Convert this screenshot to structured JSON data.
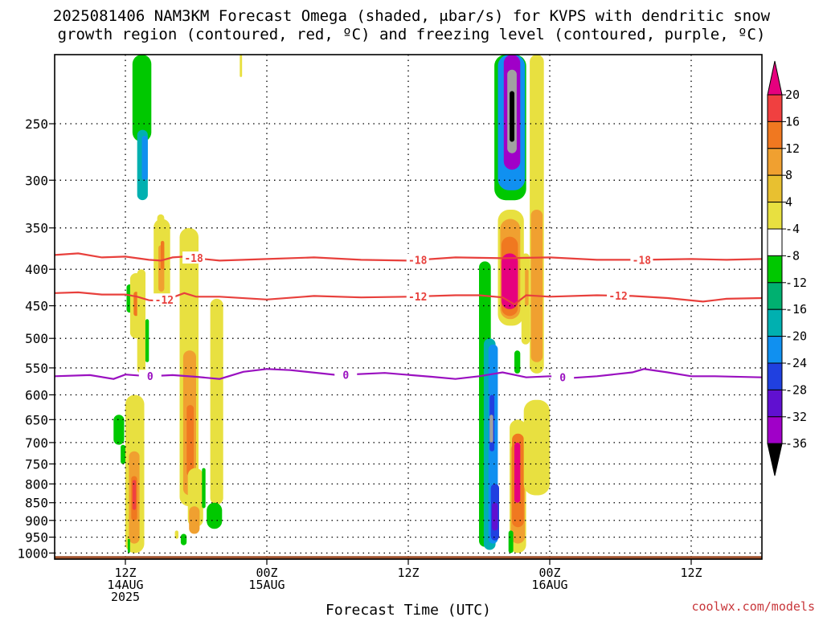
{
  "title": {
    "line1": "2025081406 NAM3KM Forecast Omega (shaded, μbar/s) for KVPS with dendritic snow",
    "line2": "growth region (contoured, red, ºC) and freezing level (contoured, purple, ºC)"
  },
  "credit": "coolwx.com/models",
  "chart_data": {
    "type": "heatmap",
    "xlabel": "Forecast Time (UTC)",
    "x_unit": "hours from 2025-08-14 00Z",
    "xlim": [
      6,
      66
    ],
    "x_ticks": [
      {
        "x": 12,
        "lines": [
          "12Z",
          "14AUG",
          "2025"
        ]
      },
      {
        "x": 24,
        "lines": [
          "00Z",
          "15AUG"
        ]
      },
      {
        "x": 36,
        "lines": [
          "12Z"
        ]
      },
      {
        "x": 48,
        "lines": [
          "00Z",
          "16AUG"
        ]
      },
      {
        "x": 60,
        "lines": [
          "12Z"
        ]
      }
    ],
    "y_unit": "hPa",
    "y_scale": "log",
    "ylim": [
      1020,
      200
    ],
    "y_ticks": [
      250,
      300,
      350,
      400,
      450,
      500,
      550,
      600,
      650,
      700,
      750,
      800,
      850,
      900,
      950,
      1000
    ],
    "grid": true,
    "colorbar": {
      "ticks": [
        20,
        16,
        12,
        8,
        4,
        -4,
        -8,
        -12,
        -16,
        -20,
        -24,
        -28,
        -32,
        -36
      ],
      "colors": [
        "#e6007e",
        "#f04040",
        "#f07820",
        "#f0a030",
        "#e8c030",
        "#e8e040",
        "#ffffff",
        "#00c800",
        "#00b070",
        "#00b0b0",
        "#1090f0",
        "#2040e0",
        "#6010d0",
        "#a000c8",
        "#a0a0a0",
        "#000000"
      ]
    },
    "omega_cells": [
      {
        "x": [
          12.6,
          14.2
        ],
        "p": [
          265,
          200
        ],
        "v": -8
      },
      {
        "x": [
          13.0,
          13.9
        ],
        "p": [
          320,
          255
        ],
        "v": -12
      },
      {
        "x": [
          13.4,
          13.9
        ],
        "p": [
          300,
          260
        ],
        "v": -16
      },
      {
        "x": [
          12.1,
          12.6
        ],
        "p": [
          460,
          420
        ],
        "v": -8
      },
      {
        "x": [
          14.7,
          15.3
        ],
        "p": [
          380,
          335
        ],
        "v": 4
      },
      {
        "x": [
          15.2,
          15.5
        ],
        "p": [
          440,
          395
        ],
        "v": 8
      },
      {
        "x": [
          12.4,
          13.4
        ],
        "p": [
          500,
          405
        ],
        "v": 4
      },
      {
        "x": [
          12.7,
          13.1
        ],
        "p": [
          465,
          430
        ],
        "v": 12
      },
      {
        "x": [
          14.4,
          15.8
        ],
        "p": [
          450,
          340
        ],
        "v": 4
      },
      {
        "x": [
          14.8,
          15.3
        ],
        "p": [
          430,
          370
        ],
        "v": 8
      },
      {
        "x": [
          15.0,
          15.3
        ],
        "p": [
          400,
          365
        ],
        "v": 12
      },
      {
        "x": [
          13.0,
          13.7
        ],
        "p": [
          560,
          400
        ],
        "v": 4
      },
      {
        "x": [
          13.7,
          14.0
        ],
        "p": [
          540,
          470
        ],
        "v": -8
      },
      {
        "x": [
          12.0,
          13.6
        ],
        "p": [
          1000,
          600
        ],
        "v": 4
      },
      {
        "x": [
          12.3,
          13.2
        ],
        "p": [
          970,
          720
        ],
        "v": 8
      },
      {
        "x": [
          12.5,
          13.0
        ],
        "p": [
          900,
          780
        ],
        "v": 12
      },
      {
        "x": [
          12.6,
          12.9
        ],
        "p": [
          870,
          790
        ],
        "v": 16
      },
      {
        "x": [
          11.0,
          11.9
        ],
        "p": [
          705,
          640
        ],
        "v": -8
      },
      {
        "x": [
          11.6,
          12.0
        ],
        "p": [
          750,
          705
        ],
        "v": -8
      },
      {
        "x": [
          12.2,
          12.4
        ],
        "p": [
          1000,
          955
        ],
        "v": -8
      },
      {
        "x": [
          16.6,
          18.2
        ],
        "p": [
          860,
          350
        ],
        "v": 4
      },
      {
        "x": [
          16.9,
          18.0
        ],
        "p": [
          830,
          520
        ],
        "v": 8
      },
      {
        "x": [
          17.2,
          17.8
        ],
        "p": [
          780,
          620
        ],
        "v": 12
      },
      {
        "x": [
          17.3,
          18.6
        ],
        "p": [
          920,
          760
        ],
        "v": 4
      },
      {
        "x": [
          17.4,
          18.3
        ],
        "p": [
          940,
          860
        ],
        "v": 8
      },
      {
        "x": [
          19.2,
          20.3
        ],
        "p": [
          855,
          440
        ],
        "v": 4
      },
      {
        "x": [
          18.9,
          20.2
        ],
        "p": [
          925,
          850
        ],
        "v": -8
      },
      {
        "x": [
          18.5,
          18.8
        ],
        "p": [
          865,
          760
        ],
        "v": -8
      },
      {
        "x": [
          16.7,
          17.2
        ],
        "p": [
          975,
          940
        ],
        "v": -8
      },
      {
        "x": [
          16.2,
          16.5
        ],
        "p": [
          955,
          930
        ],
        "v": 4
      },
      {
        "x": [
          21.7,
          21.9
        ],
        "p": [
          215,
          200
        ],
        "v": 4
      },
      {
        "x": [
          42.0,
          42.8
        ],
        "p": [
          970,
          760
        ],
        "v": -8
      },
      {
        "x": [
          42.0,
          43.0
        ],
        "p": [
          980,
          390
        ],
        "v": -8
      },
      {
        "x": [
          42.4,
          43.4
        ],
        "p": [
          990,
          500
        ],
        "v": -12
      },
      {
        "x": [
          42.8,
          43.6
        ],
        "p": [
          970,
          510
        ],
        "v": -16
      },
      {
        "x": [
          43.0,
          43.7
        ],
        "p": [
          960,
          800
        ],
        "v": -20
      },
      {
        "x": [
          43.1,
          43.6
        ],
        "p": [
          930,
          850
        ],
        "v": -24
      },
      {
        "x": [
          42.9,
          43.3
        ],
        "p": [
          720,
          600
        ],
        "v": -20
      },
      {
        "x": [
          42.9,
          43.2
        ],
        "p": [
          700,
          640
        ],
        "v": -32
      },
      {
        "x": [
          43.6,
          45.8
        ],
        "p": [
          480,
          330
        ],
        "v": 4
      },
      {
        "x": [
          43.8,
          45.5
        ],
        "p": [
          470,
          340
        ],
        "v": 8
      },
      {
        "x": [
          43.9,
          45.3
        ],
        "p": [
          465,
          360
        ],
        "v": 12
      },
      {
        "x": [
          43.9,
          45.3
        ],
        "p": [
          455,
          380
        ],
        "v": 20
      },
      {
        "x": [
          43.3,
          46.0
        ],
        "p": [
          320,
          200
        ],
        "v": -8
      },
      {
        "x": [
          43.6,
          45.9
        ],
        "p": [
          310,
          200
        ],
        "v": -16
      },
      {
        "x": [
          44.1,
          45.5
        ],
        "p": [
          290,
          200
        ],
        "v": -28
      },
      {
        "x": [
          44.4,
          45.2
        ],
        "p": [
          275,
          210
        ],
        "v": -32
      },
      {
        "x": [
          44.6,
          45.0
        ],
        "p": [
          265,
          225
        ],
        "v": -36
      },
      {
        "x": [
          44.6,
          46.0
        ],
        "p": [
          1000,
          650
        ],
        "v": 4
      },
      {
        "x": [
          44.7,
          45.9
        ],
        "p": [
          970,
          700
        ],
        "v": 8
      },
      {
        "x": [
          44.8,
          45.8
        ],
        "p": [
          920,
          680
        ],
        "v": 12
      },
      {
        "x": [
          45.0,
          45.5
        ],
        "p": [
          850,
          700
        ],
        "v": 20
      },
      {
        "x": [
          44.5,
          44.9
        ],
        "p": [
          1000,
          930
        ],
        "v": -8
      },
      {
        "x": [
          45.0,
          45.5
        ],
        "p": [
          560,
          520
        ],
        "v": -8
      },
      {
        "x": [
          45.6,
          46.3
        ],
        "p": [
          510,
          380
        ],
        "v": 4
      },
      {
        "x": [
          45.9,
          46.2
        ],
        "p": [
          450,
          400
        ],
        "v": 8
      },
      {
        "x": [
          46.3,
          47.5
        ],
        "p": [
          560,
          200
        ],
        "v": 4
      },
      {
        "x": [
          46.4,
          47.4
        ],
        "p": [
          540,
          330
        ],
        "v": 8
      },
      {
        "x": [
          45.8,
          48.0
        ],
        "p": [
          830,
          610
        ],
        "v": 4
      }
    ],
    "isotherms": [
      {
        "name": "-18",
        "color": "#e8403c",
        "points": [
          [
            6,
            382
          ],
          [
            8,
            380
          ],
          [
            10,
            385
          ],
          [
            12,
            384
          ],
          [
            13,
            386
          ],
          [
            14,
            388
          ],
          [
            15,
            389
          ],
          [
            16,
            385
          ],
          [
            17,
            384
          ],
          [
            18,
            386
          ],
          [
            20,
            389
          ],
          [
            24,
            387
          ],
          [
            28,
            385
          ],
          [
            32,
            388
          ],
          [
            36,
            389
          ],
          [
            40,
            385
          ],
          [
            44,
            386
          ],
          [
            48,
            385
          ],
          [
            52,
            388
          ],
          [
            56,
            388
          ],
          [
            60,
            387
          ],
          [
            63,
            388
          ],
          [
            66,
            387
          ]
        ],
        "labels": [
          {
            "x": 17.8,
            "text": "-18"
          },
          {
            "x": 36.8,
            "text": "-18"
          },
          {
            "x": 55.8,
            "text": "-18"
          }
        ]
      },
      {
        "name": "-12",
        "color": "#e8403c",
        "points": [
          [
            6,
            432
          ],
          [
            8,
            431
          ],
          [
            10,
            434
          ],
          [
            12,
            434
          ],
          [
            13,
            437
          ],
          [
            14,
            442
          ],
          [
            15,
            443
          ],
          [
            16,
            438
          ],
          [
            17,
            432
          ],
          [
            18,
            437
          ],
          [
            20,
            437
          ],
          [
            24,
            441
          ],
          [
            28,
            436
          ],
          [
            32,
            438
          ],
          [
            36,
            437
          ],
          [
            40,
            435
          ],
          [
            42,
            435
          ],
          [
            44,
            438
          ],
          [
            45,
            448
          ],
          [
            46,
            435
          ],
          [
            48,
            437
          ],
          [
            52,
            435
          ],
          [
            55,
            436
          ],
          [
            58,
            439
          ],
          [
            61,
            444
          ],
          [
            63,
            440
          ],
          [
            66,
            439
          ]
        ],
        "labels": [
          {
            "x": 15.3,
            "text": "-12"
          },
          {
            "x": 36.8,
            "text": "-12"
          },
          {
            "x": 53.8,
            "text": "-12"
          }
        ]
      },
      {
        "name": "0",
        "color": "#9a10c0",
        "points": [
          [
            6,
            565
          ],
          [
            9,
            563
          ],
          [
            11,
            570
          ],
          [
            12,
            562
          ],
          [
            14,
            565
          ],
          [
            16,
            563
          ],
          [
            18,
            566
          ],
          [
            20,
            570
          ],
          [
            22,
            557
          ],
          [
            24,
            552
          ],
          [
            26,
            554
          ],
          [
            30,
            563
          ],
          [
            34,
            559
          ],
          [
            38,
            566
          ],
          [
            40,
            570
          ],
          [
            42,
            565
          ],
          [
            44,
            558
          ],
          [
            46,
            567
          ],
          [
            48,
            565
          ],
          [
            50,
            568
          ],
          [
            52,
            565
          ],
          [
            55,
            558
          ],
          [
            56,
            552
          ],
          [
            58,
            558
          ],
          [
            60,
            565
          ],
          [
            62,
            565
          ],
          [
            66,
            567
          ]
        ],
        "labels": [
          {
            "x": 14.1,
            "text": "0"
          },
          {
            "x": 30.7,
            "text": "0"
          },
          {
            "x": 49.1,
            "text": "0"
          }
        ]
      }
    ],
    "terrain": {
      "p_top": 1010,
      "color": "#a0522d"
    }
  }
}
